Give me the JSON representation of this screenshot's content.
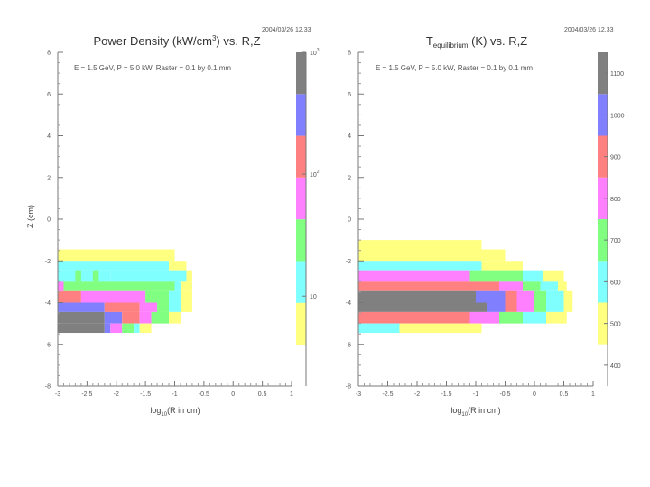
{
  "chart_data": [
    {
      "type": "heatmap",
      "title": "Power Density (kW/cm",
      "title_sup": "3",
      "title_tail": ") vs. R,Z",
      "timestamp": "2004/03/26   12.33",
      "annotation": "E = 1.5 GeV, P = 5.0 kW, Raster = 0.1 by 0.1 mm",
      "xlabel": "log",
      "xlabel_sub": "10",
      "xlabel_tail": "(R in cm)",
      "ylabel": "Z (cm)",
      "xlim": [
        -3,
        1
      ],
      "ylim": [
        -8,
        8
      ],
      "x_ticks": [
        "-3",
        "-2.5",
        "-2",
        "-1.5",
        "-1",
        "-0.5",
        "0",
        "0.5",
        "1"
      ],
      "y_ticks": [
        "-8",
        "-6",
        "-4",
        "-2",
        "0",
        "2",
        "4",
        "6",
        "8"
      ],
      "colorbar": {
        "scale": "log",
        "range": [
          4,
          1000
        ],
        "colors": [
          "#ffff80",
          "#80ffff",
          "#80ff80",
          "#ff80ff",
          "#ff8080",
          "#8080ff",
          "#808080"
        ],
        "labels": [
          {
            "text": "10",
            "sup": "",
            "value": 10
          },
          {
            "text": "10",
            "sup": "2",
            "value": 100
          },
          {
            "text": "10",
            "sup": "3",
            "value": 1000
          }
        ]
      },
      "cells": [
        {
          "x": [
            -3.0,
            -1.0
          ],
          "y": [
            -1.45,
            -2.0
          ],
          "color": "#ffff80"
        },
        {
          "x": [
            -3.0,
            -1.1
          ],
          "y": [
            -2.0,
            -2.45
          ],
          "color": "#80ffff"
        },
        {
          "x": [
            -1.1,
            -0.8
          ],
          "y": [
            -2.0,
            -2.45
          ],
          "color": "#ffff80"
        },
        {
          "x": [
            -3.0,
            -2.1
          ],
          "y": [
            -2.45,
            -3.0
          ],
          "color": "#80ffff"
        },
        {
          "x": [
            -2.1,
            -0.8
          ],
          "y": [
            -2.45,
            -3.0
          ],
          "color": "#80ffff"
        },
        {
          "x": [
            -0.8,
            -0.7
          ],
          "y": [
            -2.45,
            -3.0
          ],
          "color": "#ffff80"
        },
        {
          "x": [
            -3.0,
            -1.0
          ],
          "y": [
            -3.0,
            -3.45
          ],
          "color": "#80ff80"
        },
        {
          "x": [
            -1.0,
            -0.9
          ],
          "y": [
            -3.0,
            -3.45
          ],
          "color": "#80ffff"
        },
        {
          "x": [
            -0.9,
            -0.7
          ],
          "y": [
            -3.0,
            -3.45
          ],
          "color": "#ffff80"
        },
        {
          "x": [
            -3.0,
            -2.6
          ],
          "y": [
            -3.45,
            -4.0
          ],
          "color": "#ff8080"
        },
        {
          "x": [
            -2.6,
            -1.5
          ],
          "y": [
            -3.45,
            -4.0
          ],
          "color": "#ff80ff"
        },
        {
          "x": [
            -1.5,
            -1.1
          ],
          "y": [
            -3.45,
            -4.0
          ],
          "color": "#80ff80"
        },
        {
          "x": [
            -1.1,
            -0.9
          ],
          "y": [
            -3.45,
            -4.0
          ],
          "color": "#80ffff"
        },
        {
          "x": [
            -0.9,
            -0.7
          ],
          "y": [
            -3.45,
            -4.0
          ],
          "color": "#ffff80"
        },
        {
          "x": [
            -3.0,
            -2.2
          ],
          "y": [
            -4.0,
            -4.45
          ],
          "color": "#8080ff"
        },
        {
          "x": [
            -2.2,
            -1.6
          ],
          "y": [
            -4.0,
            -4.45
          ],
          "color": "#ff8080"
        },
        {
          "x": [
            -1.6,
            -1.3
          ],
          "y": [
            -4.0,
            -4.45
          ],
          "color": "#ff80ff"
        },
        {
          "x": [
            -1.3,
            -1.1
          ],
          "y": [
            -4.0,
            -4.45
          ],
          "color": "#80ff80"
        },
        {
          "x": [
            -1.1,
            -0.9
          ],
          "y": [
            -4.0,
            -4.45
          ],
          "color": "#80ffff"
        },
        {
          "x": [
            -0.9,
            -0.7
          ],
          "y": [
            -4.0,
            -4.45
          ],
          "color": "#ffff80"
        },
        {
          "x": [
            -3.0,
            -2.2
          ],
          "y": [
            -4.45,
            -5.0
          ],
          "color": "#808080"
        },
        {
          "x": [
            -2.2,
            -1.9
          ],
          "y": [
            -4.45,
            -5.0
          ],
          "color": "#8080ff"
        },
        {
          "x": [
            -1.9,
            -1.6
          ],
          "y": [
            -4.45,
            -5.0
          ],
          "color": "#ff8080"
        },
        {
          "x": [
            -1.6,
            -1.4
          ],
          "y": [
            -4.45,
            -5.0
          ],
          "color": "#ff80ff"
        },
        {
          "x": [
            -1.4,
            -1.1
          ],
          "y": [
            -4.45,
            -5.0
          ],
          "color": "#80ff80"
        },
        {
          "x": [
            -1.1,
            -0.9
          ],
          "y": [
            -4.45,
            -5.0
          ],
          "color": "#ffff80"
        },
        {
          "x": [
            -3.0,
            -2.2
          ],
          "y": [
            -5.0,
            -5.45
          ],
          "color": "#808080"
        },
        {
          "x": [
            -2.2,
            -2.1
          ],
          "y": [
            -5.0,
            -5.45
          ],
          "color": "#8080ff"
        },
        {
          "x": [
            -2.1,
            -1.9
          ],
          "y": [
            -5.0,
            -5.45
          ],
          "color": "#ff80ff"
        },
        {
          "x": [
            -1.9,
            -1.7
          ],
          "y": [
            -5.0,
            -5.45
          ],
          "color": "#80ff80"
        },
        {
          "x": [
            -1.7,
            -1.6
          ],
          "y": [
            -5.0,
            -5.45
          ],
          "color": "#80ffff"
        },
        {
          "x": [
            -1.6,
            -1.4
          ],
          "y": [
            -5.0,
            -5.45
          ],
          "color": "#ffff80"
        },
        {
          "x": [
            -2.7,
            -2.6
          ],
          "y": [
            -2.45,
            -3.0
          ],
          "color": "#80ff80"
        },
        {
          "x": [
            -2.4,
            -2.3
          ],
          "y": [
            -2.45,
            -3.0
          ],
          "color": "#80ff80"
        },
        {
          "x": [
            -3.0,
            -2.9
          ],
          "y": [
            -3.0,
            -3.45
          ],
          "color": "#ff80ff"
        }
      ]
    },
    {
      "type": "heatmap",
      "title": "T",
      "title_sub": "equilibrium",
      "title_tail": " (K) vs. R,Z",
      "timestamp": "2004/03/26   12.33",
      "annotation": "E = 1.5 GeV, P = 5.0 kW, Raster = 0.1 by 0.1 mm",
      "xlabel": "log",
      "xlabel_sub": "10",
      "xlabel_tail": "(R in cm)",
      "ylabel": "",
      "xlim": [
        -3,
        1
      ],
      "ylim": [
        -8,
        8
      ],
      "x_ticks": [
        "-3",
        "-2.5",
        "-2",
        "-1.5",
        "-1",
        "-0.5",
        "0",
        "0.5",
        "1"
      ],
      "y_ticks": [
        "-8",
        "-6",
        "-4",
        "-2",
        "0",
        "2",
        "4",
        "6",
        "8"
      ],
      "colorbar": {
        "scale": "linear",
        "range": [
          400,
          1100
        ],
        "colors": [
          "#ffff80",
          "#80ffff",
          "#80ff80",
          "#ff80ff",
          "#ff8080",
          "#8080ff",
          "#808080"
        ],
        "labels": [
          {
            "text": "400",
            "sup": "",
            "value": 400
          },
          {
            "text": "500",
            "sup": "",
            "value": 500
          },
          {
            "text": "600",
            "sup": "",
            "value": 600
          },
          {
            "text": "700",
            "sup": "",
            "value": 700
          },
          {
            "text": "800",
            "sup": "",
            "value": 800
          },
          {
            "text": "900",
            "sup": "",
            "value": 900
          },
          {
            "text": "1000",
            "sup": "",
            "value": 1000
          },
          {
            "text": "1100",
            "sup": "",
            "value": 1100
          }
        ]
      },
      "cells": [
        {
          "x": [
            -3.0,
            -0.9
          ],
          "y": [
            -1.0,
            -1.45
          ],
          "color": "#ffff80"
        },
        {
          "x": [
            -3.0,
            -0.9
          ],
          "y": [
            -1.45,
            -2.0
          ],
          "color": "#ffff80"
        },
        {
          "x": [
            -0.9,
            -0.5
          ],
          "y": [
            -1.45,
            -2.0
          ],
          "color": "#ffff80"
        },
        {
          "x": [
            -3.0,
            -0.9
          ],
          "y": [
            -2.0,
            -2.45
          ],
          "color": "#80ffff"
        },
        {
          "x": [
            -0.9,
            -0.2
          ],
          "y": [
            -2.0,
            -2.45
          ],
          "color": "#ffff80"
        },
        {
          "x": [
            -3.0,
            -1.1
          ],
          "y": [
            -2.45,
            -3.0
          ],
          "color": "#ff80ff"
        },
        {
          "x": [
            -1.1,
            -0.2
          ],
          "y": [
            -2.45,
            -3.0
          ],
          "color": "#80ff80"
        },
        {
          "x": [
            -0.2,
            0.15
          ],
          "y": [
            -2.45,
            -3.0
          ],
          "color": "#80ffff"
        },
        {
          "x": [
            0.15,
            0.5
          ],
          "y": [
            -2.45,
            -3.0
          ],
          "color": "#ffff80"
        },
        {
          "x": [
            -3.0,
            -0.6
          ],
          "y": [
            -3.0,
            -3.45
          ],
          "color": "#ff8080"
        },
        {
          "x": [
            -0.6,
            -0.2
          ],
          "y": [
            -3.0,
            -3.45
          ],
          "color": "#ff80ff"
        },
        {
          "x": [
            -0.2,
            0.1
          ],
          "y": [
            -3.0,
            -3.45
          ],
          "color": "#80ff80"
        },
        {
          "x": [
            0.1,
            0.4
          ],
          "y": [
            -3.0,
            -3.45
          ],
          "color": "#80ffff"
        },
        {
          "x": [
            0.4,
            0.55
          ],
          "y": [
            -3.0,
            -3.45
          ],
          "color": "#ffff80"
        },
        {
          "x": [
            -3.0,
            -1.0
          ],
          "y": [
            -3.45,
            -4.0
          ],
          "color": "#808080"
        },
        {
          "x": [
            -1.0,
            -0.5
          ],
          "y": [
            -3.45,
            -4.0
          ],
          "color": "#8080ff"
        },
        {
          "x": [
            -0.5,
            -0.3
          ],
          "y": [
            -3.45,
            -4.0
          ],
          "color": "#ff8080"
        },
        {
          "x": [
            -0.3,
            0.0
          ],
          "y": [
            -3.45,
            -4.0
          ],
          "color": "#ff80ff"
        },
        {
          "x": [
            0.0,
            0.2
          ],
          "y": [
            -3.45,
            -4.0
          ],
          "color": "#80ff80"
        },
        {
          "x": [
            0.2,
            0.5
          ],
          "y": [
            -3.45,
            -4.0
          ],
          "color": "#80ffff"
        },
        {
          "x": [
            0.5,
            0.65
          ],
          "y": [
            -3.45,
            -4.0
          ],
          "color": "#ffff80"
        },
        {
          "x": [
            -3.0,
            -0.8
          ],
          "y": [
            -4.0,
            -4.45
          ],
          "color": "#808080"
        },
        {
          "x": [
            -0.8,
            -0.5
          ],
          "y": [
            -4.0,
            -4.45
          ],
          "color": "#8080ff"
        },
        {
          "x": [
            -0.5,
            -0.3
          ],
          "y": [
            -4.0,
            -4.45
          ],
          "color": "#ff8080"
        },
        {
          "x": [
            -0.3,
            0.0
          ],
          "y": [
            -4.0,
            -4.45
          ],
          "color": "#ff80ff"
        },
        {
          "x": [
            0.0,
            0.2
          ],
          "y": [
            -4.0,
            -4.45
          ],
          "color": "#80ff80"
        },
        {
          "x": [
            0.2,
            0.5
          ],
          "y": [
            -4.0,
            -4.45
          ],
          "color": "#80ffff"
        },
        {
          "x": [
            0.5,
            0.65
          ],
          "y": [
            -4.0,
            -4.45
          ],
          "color": "#ffff80"
        },
        {
          "x": [
            -3.0,
            -1.1
          ],
          "y": [
            -4.45,
            -5.0
          ],
          "color": "#ff8080"
        },
        {
          "x": [
            -1.1,
            -0.6
          ],
          "y": [
            -4.45,
            -5.0
          ],
          "color": "#ff80ff"
        },
        {
          "x": [
            -0.6,
            -0.2
          ],
          "y": [
            -4.45,
            -5.0
          ],
          "color": "#80ff80"
        },
        {
          "x": [
            -0.2,
            0.2
          ],
          "y": [
            -4.45,
            -5.0
          ],
          "color": "#80ffff"
        },
        {
          "x": [
            0.2,
            0.55
          ],
          "y": [
            -4.45,
            -5.0
          ],
          "color": "#ffff80"
        },
        {
          "x": [
            -3.0,
            -2.3
          ],
          "y": [
            -5.0,
            -5.45
          ],
          "color": "#80ffff"
        },
        {
          "x": [
            -2.3,
            -0.9
          ],
          "y": [
            -5.0,
            -5.45
          ],
          "color": "#ffff80"
        }
      ]
    }
  ]
}
